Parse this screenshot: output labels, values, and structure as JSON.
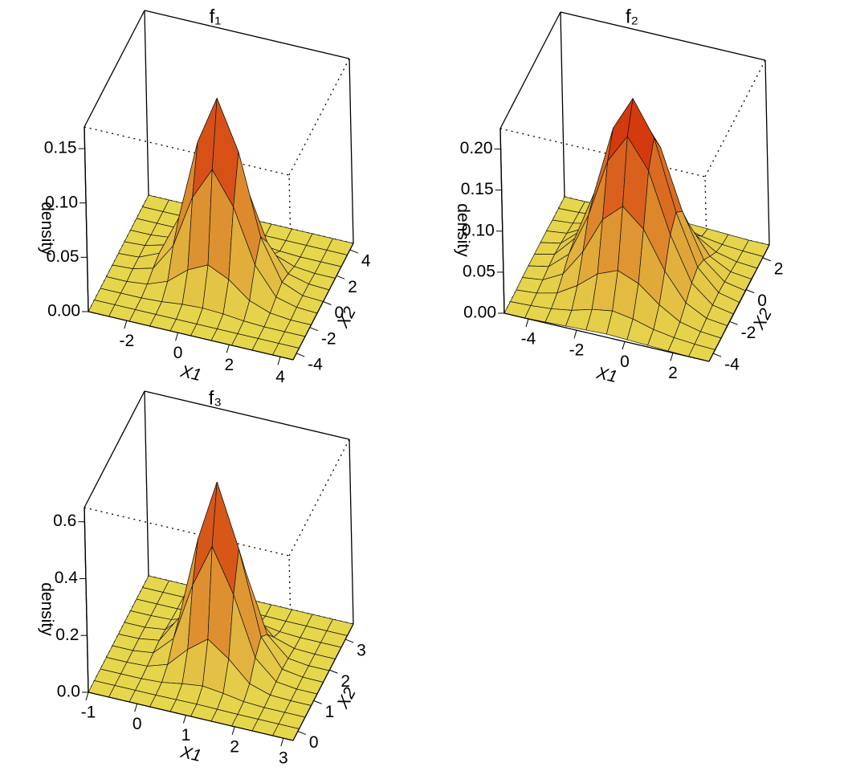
{
  "chart_data": [
    {
      "type": "surface",
      "title": "f₁",
      "xlabel": "X1",
      "ylabel": "X2",
      "zlabel": "density",
      "colors": [
        "#e6d64c",
        "#d01800"
      ],
      "x": [
        -3.5,
        -2.7,
        -1.9,
        -1.1,
        -0.3,
        0.5,
        1.3,
        2.1,
        2.9,
        3.7,
        4.5
      ],
      "y": [
        -4.5,
        -3.6,
        -2.7,
        -1.8,
        -0.9,
        0,
        0.9,
        1.8,
        2.7,
        3.6,
        4.5
      ],
      "z": [
        [
          0,
          0,
          0,
          0,
          0,
          0,
          0,
          0,
          0,
          0,
          0
        ],
        [
          0,
          0,
          0,
          0,
          0,
          0,
          0,
          0,
          0,
          0,
          0
        ],
        [
          0,
          0,
          0,
          0.001,
          0.003,
          0.004,
          0.003,
          0.001,
          0,
          0,
          0
        ],
        [
          0,
          0,
          0.002,
          0.009,
          0.024,
          0.033,
          0.024,
          0.009,
          0.002,
          0,
          0
        ],
        [
          0,
          0.001,
          0.006,
          0.031,
          0.08,
          0.11,
          0.08,
          0.031,
          0.006,
          0.001,
          0
        ],
        [
          0,
          0.001,
          0.009,
          0.046,
          0.12,
          0.165,
          0.12,
          0.046,
          0.009,
          0.001,
          0
        ],
        [
          0,
          0.001,
          0.006,
          0.031,
          0.08,
          0.11,
          0.08,
          0.031,
          0.006,
          0.001,
          0
        ],
        [
          0,
          0,
          0.002,
          0.009,
          0.024,
          0.033,
          0.024,
          0.009,
          0.002,
          0,
          0
        ],
        [
          0,
          0,
          0,
          0.001,
          0.003,
          0.004,
          0.003,
          0.001,
          0,
          0,
          0
        ],
        [
          0,
          0,
          0,
          0,
          0,
          0,
          0,
          0,
          0,
          0,
          0
        ],
        [
          0,
          0,
          0,
          0,
          0,
          0,
          0,
          0,
          0,
          0,
          0
        ]
      ],
      "xlim": [
        -3.5,
        4.5
      ],
      "ylim": [
        -4.5,
        4.5
      ],
      "zlim": [
        0,
        0.17
      ],
      "xticks": [
        -2,
        0,
        2,
        4
      ],
      "yticks": [
        -4,
        -2,
        0,
        2,
        4
      ],
      "zticks": [
        {
          "value": 0,
          "label": "0.00"
        },
        0.05,
        {
          "value": 0.1,
          "label": "0.10"
        },
        0.15
      ]
    },
    {
      "type": "surface",
      "title": "f₂",
      "xlabel": "X1",
      "ylabel": "X2",
      "zlabel": "density",
      "colors": [
        "#e6d64c",
        "#d01800"
      ],
      "x": [
        -5,
        -4.15,
        -3.3,
        -2.45,
        -1.6,
        -0.75,
        0.1,
        0.95,
        1.8,
        2.65,
        3.5
      ],
      "y": [
        -4.5,
        -3.77,
        -3.04,
        -2.31,
        -1.58,
        -0.85,
        -0.12,
        0.61,
        1.34,
        2.07,
        2.8
      ],
      "z": [
        [
          0,
          0,
          0.001,
          0.002,
          0.003,
          0.004,
          0.003,
          0.002,
          0.001,
          0,
          0
        ],
        [
          0,
          0.001,
          0.003,
          0.007,
          0.014,
          0.018,
          0.014,
          0.007,
          0.003,
          0.001,
          0
        ],
        [
          0,
          0.002,
          0.008,
          0.023,
          0.043,
          0.053,
          0.043,
          0.023,
          0.008,
          0.002,
          0
        ],
        [
          0.001,
          0.004,
          0.017,
          0.05,
          0.095,
          0.117,
          0.095,
          0.05,
          0.017,
          0.004,
          0.001
        ],
        [
          0.001,
          0.006,
          0.027,
          0.08,
          0.152,
          0.188,
          0.152,
          0.08,
          0.027,
          0.006,
          0.001
        ],
        [
          0.001,
          0.007,
          0.032,
          0.093,
          0.178,
          0.22,
          0.178,
          0.093,
          0.032,
          0.007,
          0.001
        ],
        [
          0.001,
          0.006,
          0.027,
          0.08,
          0.152,
          0.188,
          0.152,
          0.08,
          0.027,
          0.006,
          0.001
        ],
        [
          0.001,
          0.004,
          0.017,
          0.05,
          0.095,
          0.117,
          0.095,
          0.05,
          0.017,
          0.004,
          0.001
        ],
        [
          0,
          0.002,
          0.008,
          0.023,
          0.043,
          0.053,
          0.043,
          0.023,
          0.008,
          0.002,
          0
        ],
        [
          0,
          0.001,
          0.003,
          0.007,
          0.014,
          0.018,
          0.014,
          0.007,
          0.003,
          0.001,
          0
        ],
        [
          0,
          0,
          0.001,
          0.002,
          0.003,
          0.004,
          0.003,
          0.002,
          0.001,
          0,
          0
        ]
      ],
      "xlim": [
        -5,
        3.5
      ],
      "ylim": [
        -4.5,
        2.8
      ],
      "zlim": [
        0,
        0.225
      ],
      "xticks": [
        -4,
        -2,
        0,
        2
      ],
      "yticks": [
        -4,
        -2,
        0,
        2
      ],
      "zticks": [
        {
          "value": 0,
          "label": "0.00"
        },
        0.05,
        {
          "value": 0.1,
          "label": "0.10"
        },
        0.15,
        {
          "value": 0.2,
          "label": "0.20"
        }
      ]
    },
    {
      "type": "surface",
      "title": "f₃",
      "xlabel": "X1",
      "ylabel": "X2",
      "zlabel": "density",
      "colors": [
        "#e6d64c",
        "#d01800"
      ],
      "x": [
        -1,
        -0.58,
        -0.16,
        0.26,
        0.68,
        1.1,
        1.52,
        1.94,
        2.36,
        2.78,
        3.2
      ],
      "y": [
        -0.3,
        0.08,
        0.46,
        0.84,
        1.22,
        1.6,
        1.98,
        2.36,
        2.74,
        3.12,
        3.5
      ],
      "z": [
        [
          0,
          0,
          0,
          0,
          0,
          0,
          0,
          0,
          0,
          0,
          0
        ],
        [
          0,
          0,
          0,
          0,
          0.001,
          0.002,
          0.001,
          0,
          0,
          0,
          0
        ],
        [
          0,
          0,
          0,
          0.004,
          0.016,
          0.025,
          0.016,
          0.004,
          0,
          0,
          0
        ],
        [
          0,
          0,
          0.003,
          0.026,
          0.096,
          0.149,
          0.096,
          0.026,
          0.003,
          0,
          0
        ],
        [
          0,
          0,
          0.009,
          0.076,
          0.281,
          0.434,
          0.281,
          0.076,
          0.009,
          0,
          0
        ],
        [
          0,
          0.001,
          0.012,
          0.109,
          0.401,
          0.62,
          0.401,
          0.109,
          0.012,
          0.001,
          0
        ],
        [
          0,
          0,
          0.009,
          0.076,
          0.281,
          0.434,
          0.281,
          0.076,
          0.009,
          0,
          0
        ],
        [
          0,
          0,
          0.003,
          0.026,
          0.096,
          0.149,
          0.096,
          0.026,
          0.003,
          0,
          0
        ],
        [
          0,
          0,
          0,
          0.004,
          0.016,
          0.025,
          0.016,
          0.004,
          0,
          0,
          0
        ],
        [
          0,
          0,
          0,
          0,
          0.001,
          0.002,
          0.001,
          0,
          0,
          0,
          0
        ],
        [
          0,
          0,
          0,
          0,
          0,
          0,
          0,
          0,
          0,
          0,
          0
        ]
      ],
      "xlim": [
        -1,
        3.2
      ],
      "ylim": [
        -0.3,
        3.5
      ],
      "zlim": [
        0,
        0.65
      ],
      "xticks": [
        -1,
        0,
        1,
        2,
        3
      ],
      "yticks": [
        0,
        1,
        2,
        3
      ],
      "zticks": [
        {
          "value": 0,
          "label": "0.0"
        },
        0.2,
        0.4,
        0.6
      ]
    }
  ]
}
